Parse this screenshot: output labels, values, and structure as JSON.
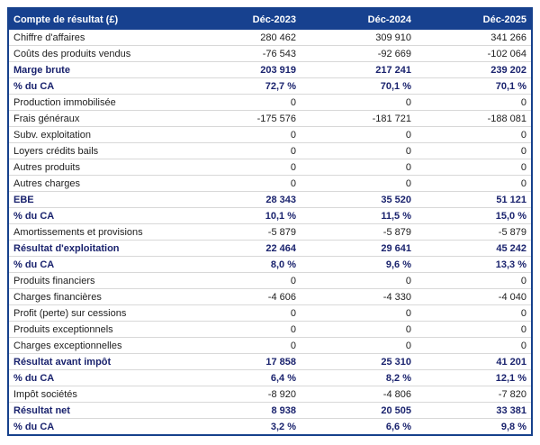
{
  "table": {
    "header": {
      "title": "Compte de résultat (£)",
      "columns": [
        "Déc-2023",
        "Déc-2024",
        "Déc-2025"
      ]
    },
    "rows": [
      {
        "label": "Chiffre d'affaires",
        "values": [
          "280 462",
          "309 910",
          "341 266"
        ],
        "emphasis": false
      },
      {
        "label": "Coûts des produits vendus",
        "values": [
          "-76 543",
          "-92 669",
          "-102 064"
        ],
        "emphasis": false
      },
      {
        "label": "Marge brute",
        "values": [
          "203 919",
          "217 241",
          "239 202"
        ],
        "emphasis": true
      },
      {
        "label": "% du CA",
        "values": [
          "72,7 %",
          "70,1 %",
          "70,1 %"
        ],
        "emphasis": true
      },
      {
        "label": "Production immobilisée",
        "values": [
          "0",
          "0",
          "0"
        ],
        "emphasis": false
      },
      {
        "label": "Frais généraux",
        "values": [
          "-175 576",
          "-181 721",
          "-188 081"
        ],
        "emphasis": false
      },
      {
        "label": "Subv. exploitation",
        "values": [
          "0",
          "0",
          "0"
        ],
        "emphasis": false
      },
      {
        "label": "Loyers crédits bails",
        "values": [
          "0",
          "0",
          "0"
        ],
        "emphasis": false
      },
      {
        "label": "Autres produits",
        "values": [
          "0",
          "0",
          "0"
        ],
        "emphasis": false
      },
      {
        "label": "Autres charges",
        "values": [
          "0",
          "0",
          "0"
        ],
        "emphasis": false
      },
      {
        "label": "EBE",
        "values": [
          "28 343",
          "35 520",
          "51 121"
        ],
        "emphasis": true
      },
      {
        "label": "% du CA",
        "values": [
          "10,1 %",
          "11,5 %",
          "15,0 %"
        ],
        "emphasis": true
      },
      {
        "label": "Amortissements et provisions",
        "values": [
          "-5 879",
          "-5 879",
          "-5 879"
        ],
        "emphasis": false
      },
      {
        "label": "Résultat d'exploitation",
        "values": [
          "22 464",
          "29 641",
          "45 242"
        ],
        "emphasis": true
      },
      {
        "label": "% du CA",
        "values": [
          "8,0 %",
          "9,6 %",
          "13,3 %"
        ],
        "emphasis": true
      },
      {
        "label": "Produits financiers",
        "values": [
          "0",
          "0",
          "0"
        ],
        "emphasis": false
      },
      {
        "label": "Charges financières",
        "values": [
          "-4 606",
          "-4 330",
          "-4 040"
        ],
        "emphasis": false
      },
      {
        "label": "Profit (perte) sur cessions",
        "values": [
          "0",
          "0",
          "0"
        ],
        "emphasis": false
      },
      {
        "label": "Produits exceptionnels",
        "values": [
          "0",
          "0",
          "0"
        ],
        "emphasis": false
      },
      {
        "label": "Charges exceptionnelles",
        "values": [
          "0",
          "0",
          "0"
        ],
        "emphasis": false
      },
      {
        "label": "Résultat avant impôt",
        "values": [
          "17 858",
          "25 310",
          "41 201"
        ],
        "emphasis": true
      },
      {
        "label": "% du CA",
        "values": [
          "6,4 %",
          "8,2 %",
          "12,1 %"
        ],
        "emphasis": true
      },
      {
        "label": "Impôt sociétés",
        "values": [
          "-8 920",
          "-4 806",
          "-7 820"
        ],
        "emphasis": false
      },
      {
        "label": "Résultat net",
        "values": [
          "8 938",
          "20 505",
          "33 381"
        ],
        "emphasis": true
      },
      {
        "label": "% du CA",
        "values": [
          "3,2 %",
          "6,6 %",
          "9,8 %"
        ],
        "emphasis": true
      }
    ]
  },
  "colors": {
    "header_bg": "#17418F",
    "header_text": "#FFFFFF",
    "emphasis_text": "#1A236E",
    "body_text": "#1D1D1D",
    "border": "#16418C",
    "row_divider": "#D8D8D8"
  }
}
